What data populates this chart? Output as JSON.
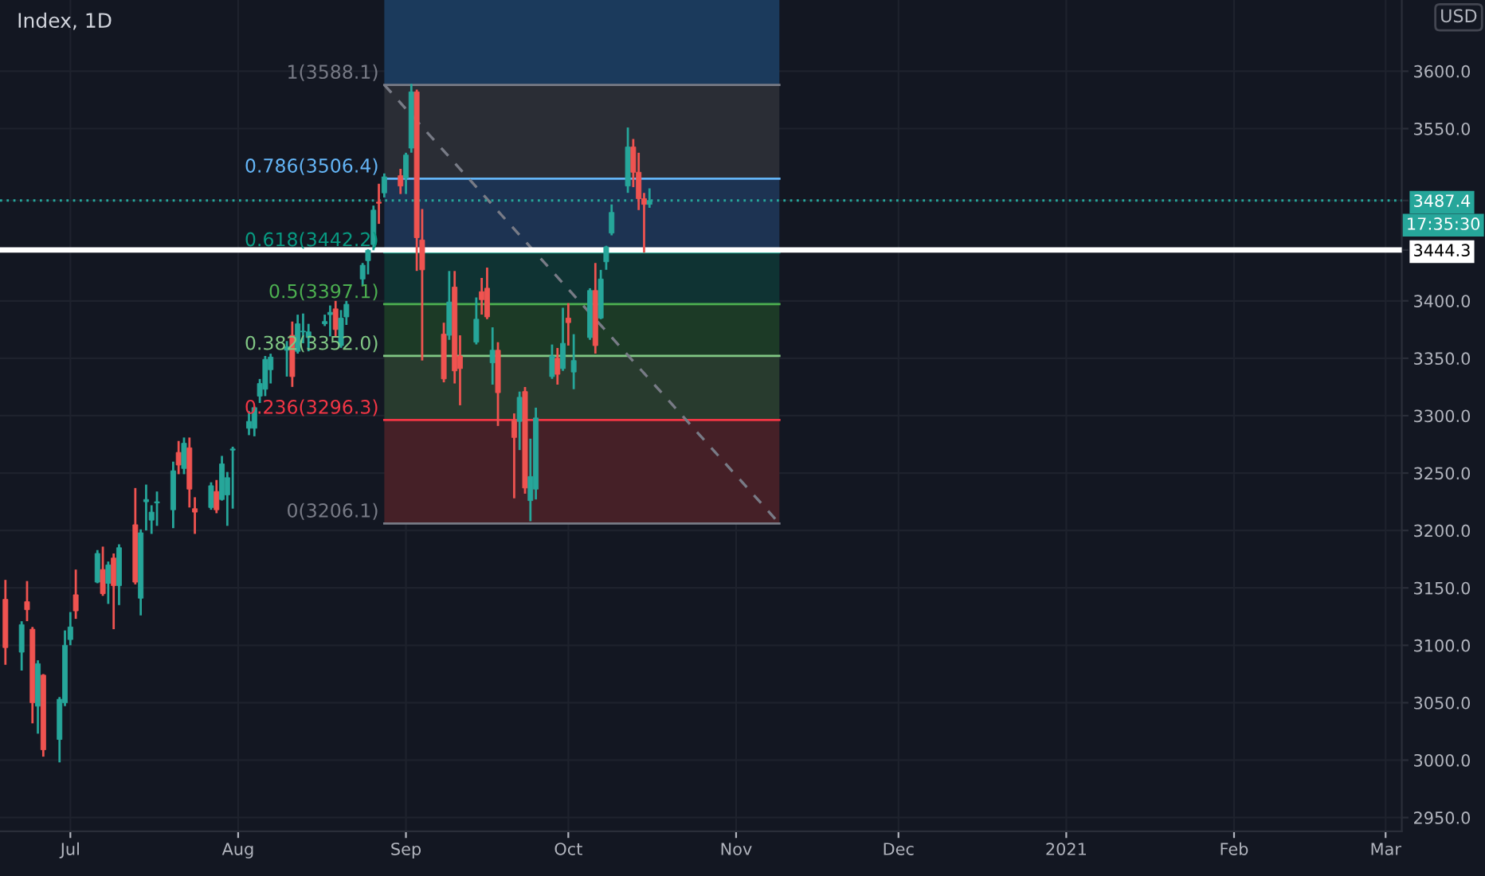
{
  "chart_data": {
    "type": "candlestick",
    "title": "Index, 1D",
    "x": [
      "2020-06-19",
      "2020-06-22",
      "2020-06-23",
      "2020-06-24",
      "2020-06-25",
      "2020-06-26",
      "2020-06-29",
      "2020-06-30",
      "2020-07-01",
      "2020-07-02",
      "2020-07-06",
      "2020-07-07",
      "2020-07-08",
      "2020-07-09",
      "2020-07-10",
      "2020-07-13",
      "2020-07-14",
      "2020-07-15",
      "2020-07-16",
      "2020-07-17",
      "2020-07-20",
      "2020-07-21",
      "2020-07-22",
      "2020-07-23",
      "2020-07-24",
      "2020-07-27",
      "2020-07-28",
      "2020-07-29",
      "2020-07-30",
      "2020-07-31",
      "2020-08-03",
      "2020-08-04",
      "2020-08-05",
      "2020-08-06",
      "2020-08-07",
      "2020-08-10",
      "2020-08-11",
      "2020-08-12",
      "2020-08-13",
      "2020-08-14",
      "2020-08-17",
      "2020-08-18",
      "2020-08-19",
      "2020-08-20",
      "2020-08-21",
      "2020-08-24",
      "2020-08-25",
      "2020-08-26",
      "2020-08-27",
      "2020-08-28",
      "2020-08-31",
      "2020-09-01",
      "2020-09-02",
      "2020-09-03",
      "2020-09-04",
      "2020-09-08",
      "2020-09-09",
      "2020-09-10",
      "2020-09-11",
      "2020-09-14",
      "2020-09-15",
      "2020-09-16",
      "2020-09-17",
      "2020-09-18",
      "2020-09-21",
      "2020-09-22",
      "2020-09-23",
      "2020-09-24",
      "2020-09-25",
      "2020-09-28",
      "2020-09-29",
      "2020-09-30",
      "2020-10-01",
      "2020-10-02",
      "2020-10-05",
      "2020-10-06",
      "2020-10-07",
      "2020-10-08",
      "2020-10-09",
      "2020-10-12",
      "2020-10-13",
      "2020-10-14",
      "2020-10-15",
      "2020-10-16"
    ],
    "ohlc": [
      [
        3140,
        3156,
        3084,
        3098
      ],
      [
        3094,
        3120,
        3079,
        3118
      ],
      [
        3138,
        3155,
        3122,
        3131
      ],
      [
        3114,
        3115,
        3033,
        3050
      ],
      [
        3047,
        3086,
        3024,
        3084
      ],
      [
        3074,
        3074,
        3004,
        3009
      ],
      [
        3018,
        3054,
        2999,
        3053
      ],
      [
        3050,
        3112,
        3048,
        3100
      ],
      [
        3105,
        3128,
        3101,
        3116
      ],
      [
        3144,
        3165,
        3124,
        3130
      ],
      [
        3155,
        3182,
        3155,
        3180
      ],
      [
        3166,
        3185,
        3144,
        3145
      ],
      [
        3154,
        3172,
        3137,
        3170
      ],
      [
        3176,
        3179,
        3115,
        3152
      ],
      [
        3152,
        3187,
        3136,
        3185
      ],
      [
        3205,
        3236,
        3154,
        3155
      ],
      [
        3141,
        3200,
        3127,
        3198
      ],
      [
        3225,
        3239,
        3201,
        3227
      ],
      [
        3209,
        3221,
        3198,
        3216
      ],
      [
        3224,
        3233,
        3205,
        3225
      ],
      [
        3218,
        3259,
        3203,
        3252
      ],
      [
        3268,
        3277,
        3250,
        3257
      ],
      [
        3254,
        3280,
        3250,
        3276
      ],
      [
        3272,
        3280,
        3221,
        3236
      ],
      [
        3219,
        3228,
        3198,
        3216
      ],
      [
        3220,
        3241,
        3219,
        3239
      ],
      [
        3234,
        3243,
        3216,
        3218
      ],
      [
        3227,
        3264,
        3227,
        3258
      ],
      [
        3231,
        3250,
        3205,
        3246
      ],
      [
        3270,
        3272,
        3220,
        3271
      ],
      [
        3289,
        3303,
        3284,
        3295
      ],
      [
        3289,
        3307,
        3283,
        3307
      ],
      [
        3317,
        3331,
        3312,
        3328
      ],
      [
        3323,
        3351,
        3318,
        3349
      ],
      [
        3340,
        3353,
        3329,
        3351
      ],
      [
        3357,
        3364,
        3335,
        3360
      ],
      [
        3370,
        3381,
        3326,
        3334
      ],
      [
        3356,
        3387,
        3355,
        3380
      ],
      [
        3373,
        3388,
        3364,
        3373
      ],
      [
        3368,
        3379,
        3357,
        3373
      ],
      [
        3380,
        3387,
        3379,
        3382
      ],
      [
        3388,
        3395,
        3370,
        3390
      ],
      [
        3393,
        3399,
        3369,
        3375
      ],
      [
        3361,
        3391,
        3360,
        3385
      ],
      [
        3386,
        3399,
        3380,
        3397
      ],
      [
        3419,
        3432,
        3414,
        3431
      ],
      [
        3435,
        3444,
        3424,
        3444
      ],
      [
        3449,
        3482,
        3445,
        3479
      ],
      [
        3486,
        3501,
        3468,
        3485
      ],
      [
        3494,
        3510,
        3491,
        3508
      ],
      [
        3509,
        3514,
        3494,
        3500
      ],
      [
        3507,
        3528,
        3494,
        3527
      ],
      [
        3533,
        3588,
        3530,
        3582
      ],
      [
        3582,
        3583,
        3427,
        3455
      ],
      [
        3453,
        3479,
        3349,
        3427
      ],
      [
        3371,
        3380,
        3330,
        3332
      ],
      [
        3370,
        3425,
        3367,
        3399
      ],
      [
        3412,
        3425,
        3329,
        3339
      ],
      [
        3352,
        3369,
        3310,
        3341
      ],
      [
        3364,
        3402,
        3363,
        3384
      ],
      [
        3408,
        3419,
        3389,
        3401
      ],
      [
        3411,
        3428,
        3385,
        3386
      ],
      [
        3346,
        3376,
        3328,
        3357
      ],
      [
        3357,
        3363,
        3292,
        3320
      ],
      [
        3296,
        3301,
        3229,
        3281
      ],
      [
        3295,
        3320,
        3271,
        3316
      ],
      [
        3321,
        3324,
        3233,
        3237
      ],
      [
        3226,
        3279,
        3209,
        3247
      ],
      [
        3236,
        3306,
        3228,
        3298
      ],
      [
        3334,
        3361,
        3333,
        3352
      ],
      [
        3350,
        3358,
        3328,
        3336
      ],
      [
        3341,
        3393,
        3340,
        3363
      ],
      [
        3385,
        3397,
        3362,
        3381
      ],
      [
        3338,
        3370,
        3324,
        3348
      ],
      [
        3368,
        3410,
        3367,
        3409
      ],
      [
        3409,
        3432,
        3355,
        3361
      ],
      [
        3385,
        3426,
        3385,
        3419
      ],
      [
        3434,
        3447,
        3428,
        3447
      ],
      [
        3459,
        3483,
        3458,
        3477
      ],
      [
        3500,
        3550,
        3495,
        3534
      ],
      [
        3534,
        3540,
        3500,
        3512
      ],
      [
        3512,
        3528,
        3480,
        3489
      ],
      [
        3489,
        3493,
        3443,
        3484
      ],
      [
        3484,
        3497,
        3482,
        3487.4
      ]
    ],
    "colors": [
      "#ef5350",
      "#26a69a",
      "#ef5350",
      "#ef5350",
      "#26a69a",
      "#ef5350",
      "#26a69a",
      "#26a69a",
      "#26a69a",
      "#ef5350",
      "#26a69a",
      "#ef5350",
      "#26a69a",
      "#ef5350",
      "#26a69a",
      "#ef5350",
      "#26a69a",
      "#26a69a",
      "#26a69a",
      "#26a69a",
      "#26a69a",
      "#ef5350",
      "#26a69a",
      "#ef5350",
      "#ef5350",
      "#26a69a",
      "#ef5350",
      "#26a69a",
      "#26a69a",
      "#26a69a",
      "#26a69a",
      "#26a69a",
      "#26a69a",
      "#26a69a",
      "#26a69a",
      "#26a69a",
      "#ef5350",
      "#26a69a",
      "#26a69a",
      "#26a69a",
      "#26a69a",
      "#26a69a",
      "#ef5350",
      "#26a69a",
      "#26a69a",
      "#26a69a",
      "#26a69a",
      "#26a69a",
      "#ef5350",
      "#26a69a",
      "#ef5350",
      "#26a69a",
      "#26a69a",
      "#ef5350",
      "#ef5350",
      "#ef5350",
      "#26a69a",
      "#ef5350",
      "#ef5350",
      "#26a69a",
      "#ef5350",
      "#ef5350",
      "#26a69a",
      "#ef5350",
      "#ef5350",
      "#26a69a",
      "#ef5350",
      "#26a69a",
      "#26a69a",
      "#26a69a",
      "#ef5350",
      "#26a69a",
      "#ef5350",
      "#26a69a",
      "#26a69a",
      "#ef5350",
      "#26a69a",
      "#26a69a",
      "#26a69a",
      "#26a69a",
      "#ef5350",
      "#ef5350",
      "#ef5350",
      "#26a69a"
    ],
    "series": [
      {
        "type": "line",
        "x": [
          "2020-08-28",
          "2020-11-09"
        ],
        "values": [
          3588.1,
          3206.1
        ],
        "color": "#787b86",
        "line_style": "dashed",
        "marker": "none"
      }
    ],
    "xlim": [
      "2020-06-18",
      "2021-03-04"
    ],
    "xticks": [
      {
        "value": "2020-07-01",
        "label": "Jul"
      },
      {
        "value": "2020-08-01",
        "label": "Aug"
      },
      {
        "value": "2020-09-01",
        "label": "Sep"
      },
      {
        "value": "2020-10-01",
        "label": "Oct"
      },
      {
        "value": "2020-11-01",
        "label": "Nov"
      },
      {
        "value": "2020-12-01",
        "label": "Dec"
      },
      {
        "value": "2021-01-01",
        "label": "2021"
      },
      {
        "value": "2021-02-01",
        "label": "Feb"
      },
      {
        "value": "2021-03-01",
        "label": "Mar"
      }
    ],
    "ylim": [
      2938,
      3662
    ],
    "yticks": [
      {
        "value": 2950,
        "label": "2950.0"
      },
      {
        "value": 3000,
        "label": "3000.0"
      },
      {
        "value": 3050,
        "label": "3050.0"
      },
      {
        "value": 3100,
        "label": "3100.0"
      },
      {
        "value": 3150,
        "label": "3150.0"
      },
      {
        "value": 3200,
        "label": "3200.0"
      },
      {
        "value": 3250,
        "label": "3250.0"
      },
      {
        "value": 3300,
        "label": "3300.0"
      },
      {
        "value": 3350,
        "label": "3350.0"
      },
      {
        "value": 3400,
        "label": "3400.0"
      },
      {
        "value": 3550,
        "label": "3550.0"
      },
      {
        "value": 3600,
        "label": "3600.0"
      },
      {
        "value": 3444.3,
        "label": "3444.3"
      },
      {
        "value": 3487.4,
        "label": "3487.4"
      }
    ],
    "grid": true,
    "bands": [
      {
        "axis": "y",
        "from": 3588.1,
        "to": 3662,
        "color": "#1b3a5c"
      },
      {
        "axis": "y",
        "from": 3506.4,
        "to": 3588.1,
        "color": "#2a2d35"
      },
      {
        "axis": "y",
        "from": 3442.2,
        "to": 3506.4,
        "color": "#1d3352"
      },
      {
        "axis": "y",
        "from": 3397.1,
        "to": 3442.2,
        "color": "#0f3333"
      },
      {
        "axis": "y",
        "from": 3352.0,
        "to": 3397.1,
        "color": "#1c3a26"
      },
      {
        "axis": "y",
        "from": 3296.3,
        "to": 3352.0,
        "color": "#283b2e"
      },
      {
        "axis": "y",
        "from": 3206.1,
        "to": 3296.3,
        "color": "#452027"
      }
    ],
    "ref_lines": [
      {
        "axis": "y",
        "value": 3588.1,
        "label": "1(3588.1)",
        "color": "#787b86"
      },
      {
        "axis": "y",
        "value": 3506.4,
        "label": "0.786(3506.4)",
        "color": "#64b5f6"
      },
      {
        "axis": "y",
        "value": 3442.2,
        "label": "0.618(3442.2)",
        "color": "#089981"
      },
      {
        "axis": "y",
        "value": 3397.1,
        "label": "0.5(3397.1)",
        "color": "#4caf50"
      },
      {
        "axis": "y",
        "value": 3352.0,
        "label": "0.382(3352.0)",
        "color": "#81c784"
      },
      {
        "axis": "y",
        "value": 3296.3,
        "label": "0.236(3296.3)",
        "color": "#f23645"
      },
      {
        "axis": "y",
        "value": 3206.1,
        "label": "0(3206.1)",
        "color": "#787b86"
      },
      {
        "axis": "y",
        "value": 3487.4,
        "color": "#26a69a",
        "line_style": "dotted"
      },
      {
        "axis": "y",
        "value": 3444.3,
        "color": "#ffffff",
        "line_style": "solid"
      }
    ],
    "annotations": [
      "17:35:30",
      "USD"
    ]
  }
}
